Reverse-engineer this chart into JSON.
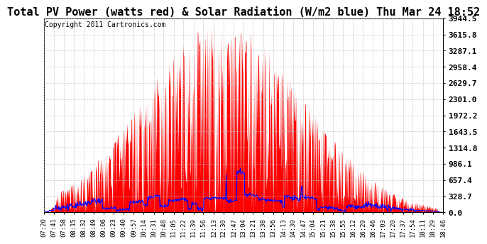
{
  "title": "Total PV Power (watts red) & Solar Radiation (W/m2 blue) Thu Mar 24 18:52",
  "copyright": "Copyright 2011 Cartronics.com",
  "yticks": [
    0.0,
    328.7,
    657.4,
    986.1,
    1314.8,
    1643.5,
    1972.2,
    2301.0,
    2629.7,
    2958.4,
    3287.1,
    3615.8,
    3944.5
  ],
  "ylim": [
    0.0,
    3944.5
  ],
  "pv_color": "red",
  "solar_color": "blue",
  "bg_color": "#ffffff",
  "grid_color": "#bbbbbb",
  "title_fontsize": 11,
  "copyright_fontsize": 7,
  "tick_fontsize": 6.5,
  "ytick_fontsize": 8,
  "x_labels": [
    "07:20",
    "07:41",
    "07:58",
    "08:15",
    "08:32",
    "08:49",
    "09:06",
    "09:23",
    "09:40",
    "09:57",
    "10:14",
    "10:31",
    "10:48",
    "11:05",
    "11:22",
    "11:39",
    "11:56",
    "12:13",
    "12:30",
    "12:47",
    "13:04",
    "13:21",
    "13:38",
    "13:56",
    "14:13",
    "14:30",
    "14:47",
    "15:04",
    "15:21",
    "15:38",
    "15:55",
    "16:12",
    "16:29",
    "16:46",
    "17:03",
    "17:20",
    "17:37",
    "17:54",
    "18:11",
    "18:29",
    "18:46"
  ]
}
